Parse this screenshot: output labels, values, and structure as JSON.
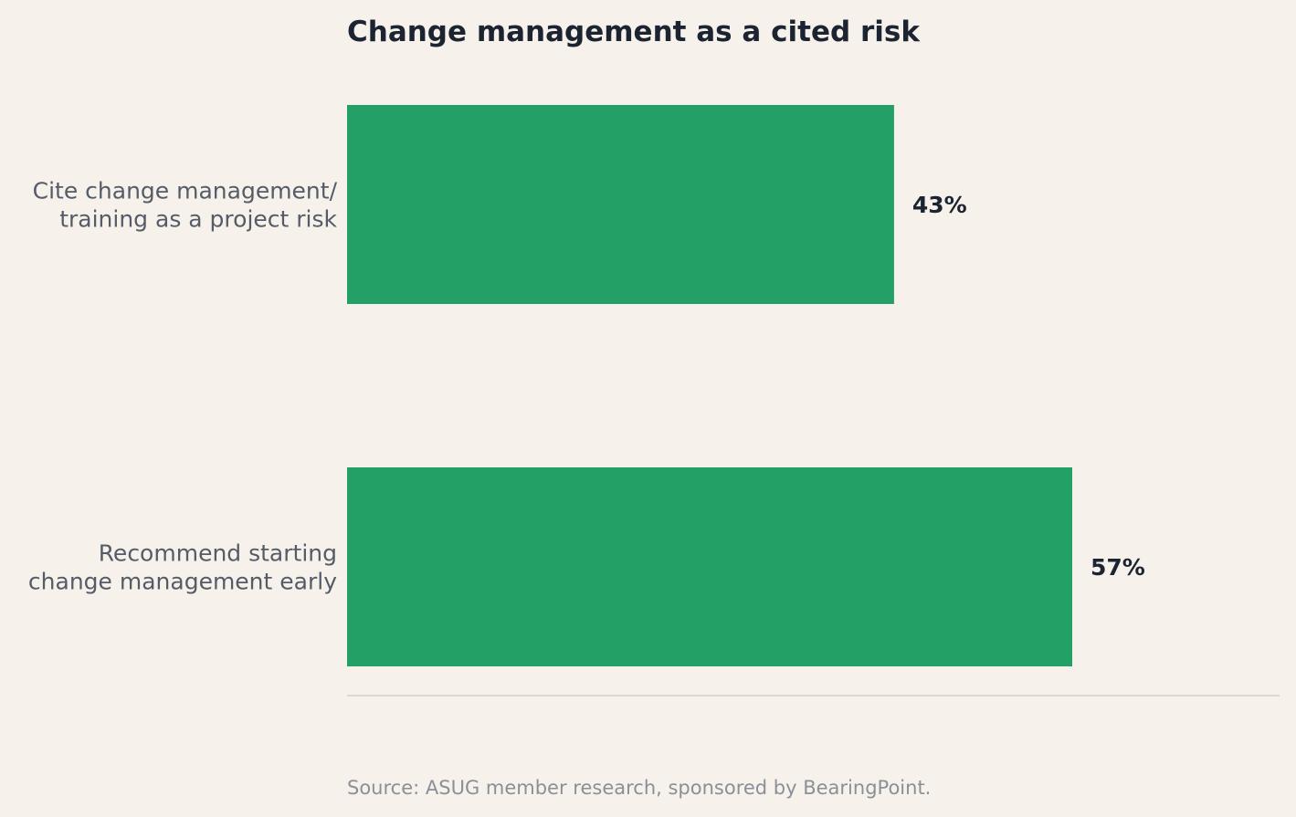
{
  "chart_data": {
    "type": "bar",
    "orientation": "horizontal",
    "title": "Change management as a cited risk",
    "categories": [
      [
        "Cite change management/",
        "training as a project risk"
      ],
      [
        "Recommend starting",
        "change management early"
      ]
    ],
    "values": [
      43,
      57
    ],
    "value_labels": [
      "43%",
      "57%"
    ],
    "xlim": [
      0,
      73.3
    ],
    "grid": false,
    "legend": "none",
    "bar_color": "#22a065"
  },
  "source": "Source: ASUG member research, sponsored by BearingPoint."
}
